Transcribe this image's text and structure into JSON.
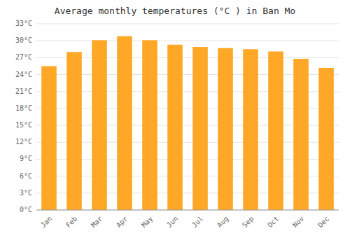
{
  "chart_data": {
    "type": "bar",
    "title": "Average monthly temperatures (°C ) in Ban Mo",
    "categories": [
      "Jan",
      "Feb",
      "Mar",
      "Apr",
      "May",
      "Jun",
      "Jul",
      "Aug",
      "Sep",
      "Oct",
      "Nov",
      "Dec"
    ],
    "values": [
      25.5,
      28.0,
      30.1,
      30.8,
      30.1,
      29.3,
      28.9,
      28.7,
      28.5,
      28.1,
      26.8,
      25.2
    ],
    "color": "#FFA726",
    "ylim": [
      0,
      33
    ],
    "yticks": [
      {
        "value": 0,
        "label": "0°C"
      },
      {
        "value": 3,
        "label": "3°C"
      },
      {
        "value": 6,
        "label": "6°C"
      },
      {
        "value": 9,
        "label": "9°C"
      },
      {
        "value": 12,
        "label": "12°C"
      },
      {
        "value": 15,
        "label": "15°C"
      },
      {
        "value": 18,
        "label": "18°C"
      },
      {
        "value": 21,
        "label": "21°C"
      },
      {
        "value": 24,
        "label": "24°C"
      },
      {
        "value": 27,
        "label": "27°C"
      },
      {
        "value": 30,
        "label": "30°C"
      },
      {
        "value": 33,
        "label": "33°C"
      }
    ],
    "grid": true
  }
}
